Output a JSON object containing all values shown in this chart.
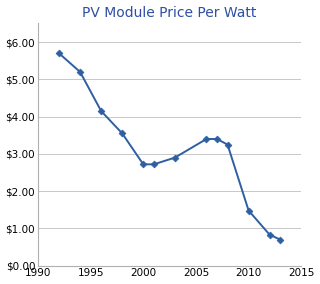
{
  "title": "PV Module Price Per Watt",
  "title_color": "#2E4FA3",
  "title_fontsize": 10,
  "years": [
    1992,
    1994,
    1996,
    1998,
    2000,
    2001,
    2003,
    2006,
    2007,
    2008,
    2010,
    2012,
    2013
  ],
  "prices": [
    5.7,
    5.2,
    4.15,
    3.55,
    2.72,
    2.72,
    2.9,
    3.4,
    3.4,
    3.25,
    1.48,
    0.83,
    0.7
  ],
  "line_color": "#2E5FA3",
  "marker": "D",
  "marker_size": 3.5,
  "linewidth": 1.4,
  "xlim": [
    1990,
    2015
  ],
  "ylim": [
    0.0,
    6.5
  ],
  "xticks": [
    1990,
    1995,
    2000,
    2005,
    2010,
    2015
  ],
  "yticks": [
    0.0,
    1.0,
    2.0,
    3.0,
    4.0,
    5.0,
    6.0
  ],
  "background_color": "#ffffff",
  "grid_color": "#c8c8c8",
  "spine_color": "#b0b0b0",
  "tick_labelsize": 7.5
}
